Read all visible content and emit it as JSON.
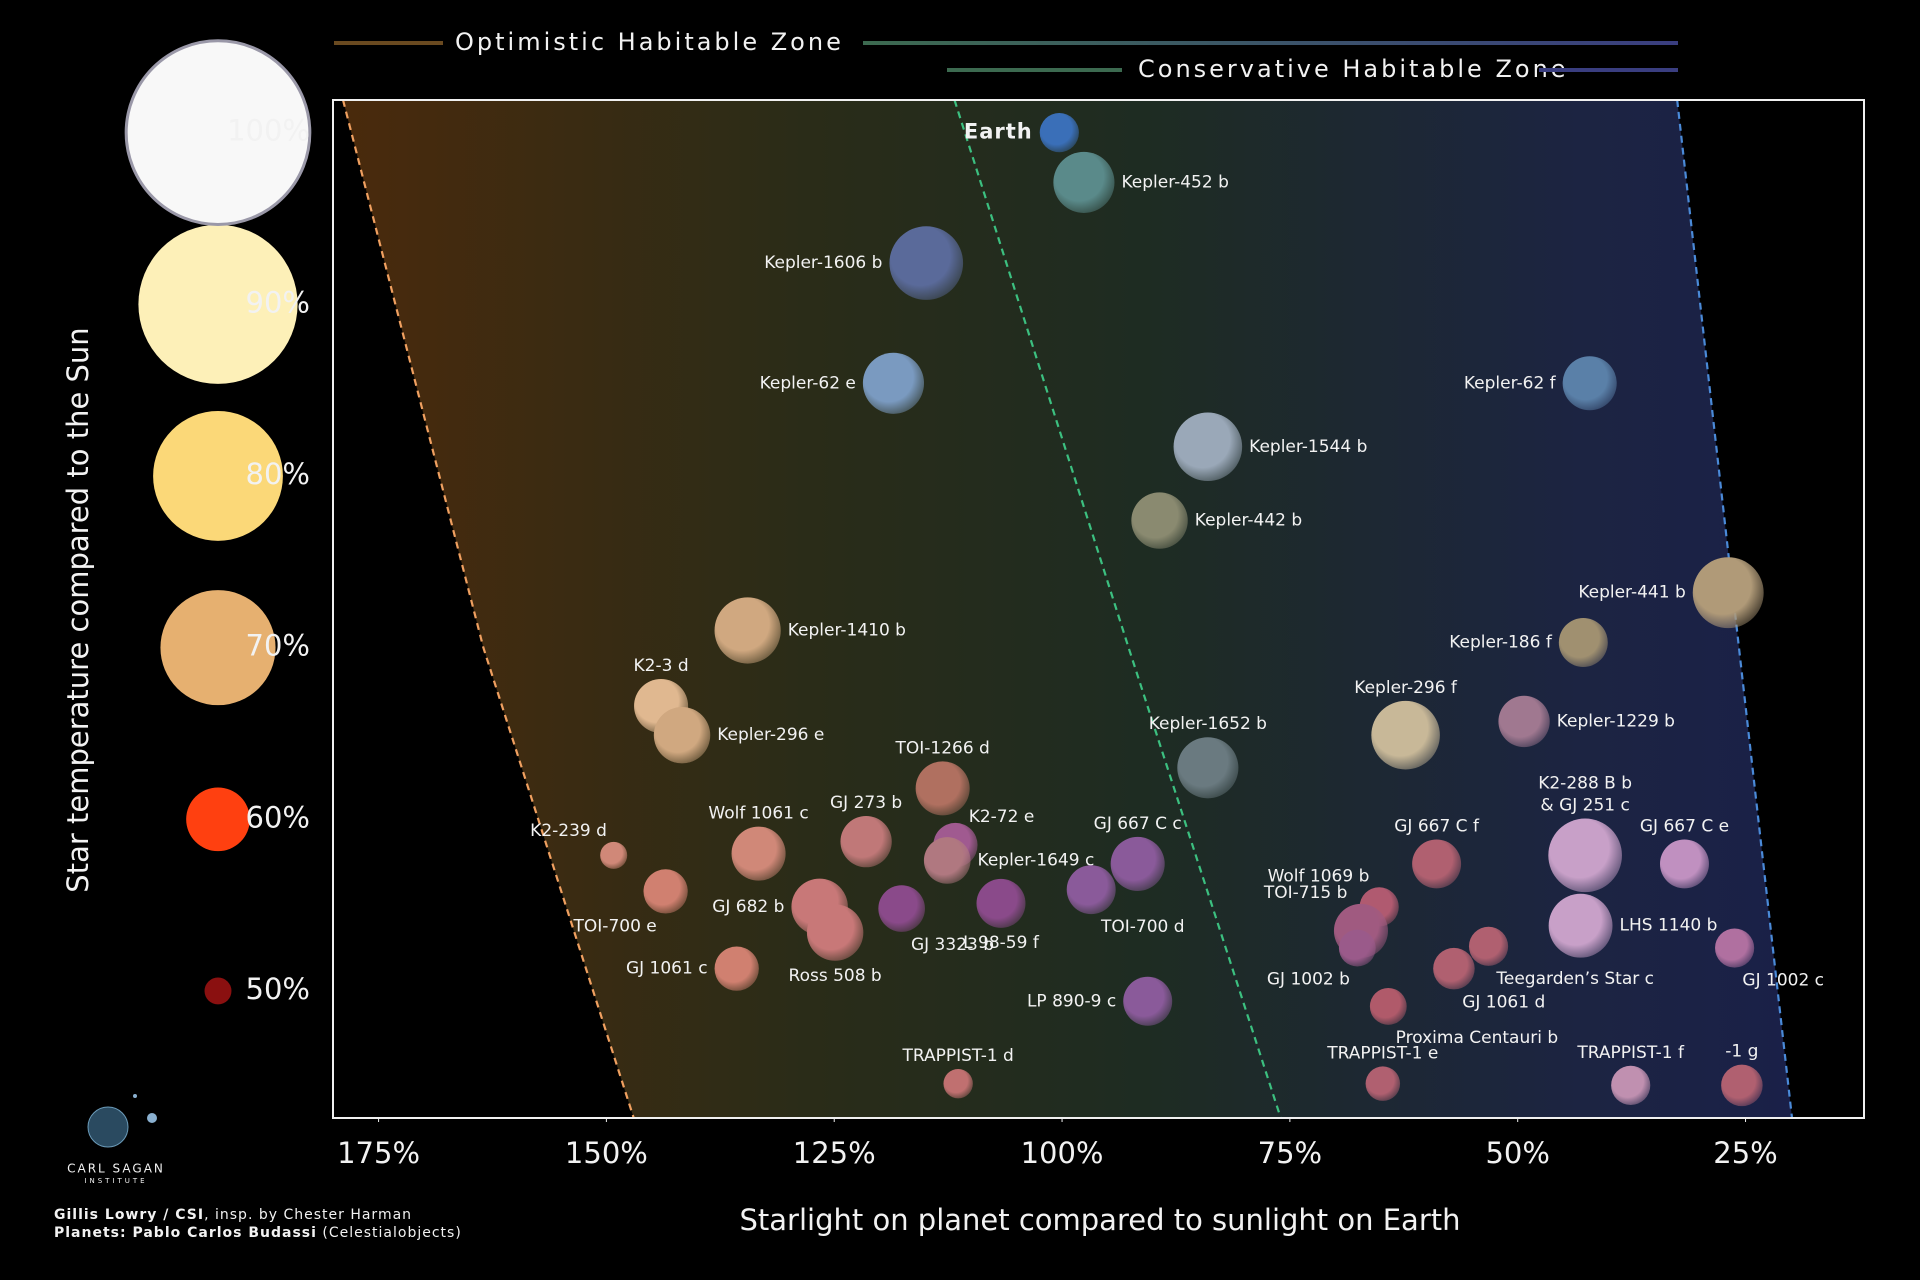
{
  "chart_data": {
    "type": "scatter",
    "x_label": "Starlight on planet compared to sunlight on Earth",
    "y_label": "Star temperature compared to the Sun",
    "xlim": [
      180,
      12
    ],
    "ylim": [
      42.6,
      101.9
    ],
    "xticks": [
      {
        "value": 175,
        "label": "175%"
      },
      {
        "value": 150,
        "label": "150%"
      },
      {
        "value": 125,
        "label": "125%"
      },
      {
        "value": 100,
        "label": "100%"
      },
      {
        "value": 75,
        "label": "75%"
      },
      {
        "value": 50,
        "label": "50%"
      },
      {
        "value": 25,
        "label": "25%"
      }
    ],
    "yticks": [
      {
        "value": 50,
        "label": "50%"
      },
      {
        "value": 60,
        "label": "60%"
      },
      {
        "value": 70,
        "label": "70%"
      },
      {
        "value": 80,
        "label": "80%"
      },
      {
        "value": 90,
        "label": "90%"
      },
      {
        "value": 100,
        "label": "100%"
      }
    ],
    "ytick_colors": [
      "#8a1010",
      "#ff4010",
      "#e6b070",
      "#fbd878",
      "#fdf0b8",
      "#f8f8f8"
    ],
    "zones": [
      {
        "name": "Optimistic Habitable Zone",
        "color": "#f0a060",
        "x": [
          178.9,
          163.5,
          147
        ],
        "y": [
          101.9,
          70,
          42.6
        ]
      },
      {
        "name": "Conservative Habitable Zone",
        "color": "#3cc080",
        "x": [
          111.8,
          92.7,
          76
        ],
        "y": [
          101.9,
          70,
          42.6
        ]
      },
      {
        "color": "#4a8ad8",
        "x": [
          32.5,
          19.9
        ],
        "y": [
          101.9,
          42.6
        ]
      }
    ],
    "series": [
      {
        "labels": [
          "Earth",
          "Kepler-452 b",
          "Kepler-1606 b",
          "Kepler-62 e",
          "Kepler-62 f",
          "Kepler-1544 b",
          "Kepler-442 b",
          "Kepler-441 b",
          "Kepler-186 f",
          "Kepler-1410 b",
          "K2-3 d",
          "Kepler-296 e",
          "Kepler-296 f",
          "Kepler-1229 b",
          "Kepler-1652 b",
          "TOI-1266 d",
          "K2-239 d",
          "Wolf 1061 c",
          "GJ 273 b",
          "K2-72 e",
          "Kepler-1649 c",
          "GJ 667 C c",
          "TOI-700 d",
          "TOI-700 e",
          "GJ 682 b",
          "Ross 508 b",
          "GJ 3323 b",
          "L 98-59 f",
          "GJ 1061 c",
          "LP 890-9 c",
          "TRAPPIST-1 d",
          "GJ 667 C f",
          "K2-288 B b\n& GJ 251 c",
          "GJ 667 C e",
          "Wolf 1069 b",
          "TOI-715 b",
          "GJ 1002 b",
          "LHS 1140 b",
          "GJ 1002 c",
          "Teegarden’s Star c",
          "GJ 1061 d",
          "Proxima Centauri b",
          "TRAPPIST-1 e",
          "TRAPPIST-1 f",
          "-1 g"
        ],
        "x": [
          100.3,
          97.6,
          114.9,
          118.5,
          42.1,
          84,
          89.3,
          26.9,
          42.8,
          134.5,
          144,
          141.7,
          62.3,
          49.3,
          84,
          113.1,
          149.2,
          133.3,
          121.5,
          111.7,
          112.6,
          91.7,
          96.8,
          143.5,
          126.6,
          124.9,
          117.6,
          106.7,
          135.7,
          90.6,
          111.4,
          58.9,
          42.6,
          31.7,
          65.2,
          67.2,
          67.6,
          43.1,
          26.2,
          53.2,
          57,
          64.2,
          64.8,
          37.6,
          25.4
        ],
        "values": [
          100,
          97.1,
          92.4,
          85.4,
          85.4,
          81.7,
          77.4,
          73.2,
          70.3,
          71,
          66.6,
          64.9,
          64.9,
          65.7,
          63,
          61.8,
          57.9,
          58,
          58.7,
          58.5,
          57.6,
          57.4,
          55.9,
          55.8,
          54.9,
          53.4,
          54.8,
          55.1,
          51.3,
          49.4,
          44.6,
          57.4,
          57.9,
          57.4,
          54.9,
          53.5,
          52.5,
          53.8,
          52.5,
          52.6,
          51.3,
          49.1,
          44.6,
          44.5,
          44.5
        ],
        "sizes": [
          1,
          1.56,
          1.88,
          1.56,
          1.38,
          1.75,
          1.44,
          1.81,
          1.25,
          1.69,
          1.38,
          1.44,
          1.75,
          1.31,
          1.56,
          1.38,
          0.69,
          1.38,
          1.31,
          1.13,
          1.19,
          1.38,
          1.25,
          1.13,
          1.44,
          1.44,
          1.19,
          1.25,
          1.13,
          1.25,
          0.75,
          1.25,
          1.88,
          1.25,
          1,
          1.38,
          0.94,
          1.63,
          1,
          1,
          1.06,
          0.94,
          0.88,
          1,
          1.06
        ],
        "colors": [
          "#3a6fb8",
          "#5a8a8a",
          "#5a6a9a",
          "#7a9ac0",
          "#5a80a8",
          "#9aa8b8",
          "#8a8a70",
          "#b09a78",
          "#a09070",
          "#d0a880",
          "#e0b890",
          "#d0a880",
          "#c8b898",
          "#a07890",
          "#6a7a80",
          "#b07060",
          "#d08878",
          "#d08878",
          "#c07878",
          "#a05a90",
          "#b07880",
          "#8a5a9a",
          "#8a5a9a",
          "#d08070",
          "#c87878",
          "#c87878",
          "#8a4a8a",
          "#8a4a8a",
          "#d08070",
          "#8a5a9a",
          "#c07070",
          "#b06070",
          "#c8a0c8",
          "#c090c0",
          "#b05a70",
          "#a05a80",
          "#9a5a8a",
          "#c8a0c8",
          "#b070a0",
          "#b06070",
          "#b06070",
          "#b05a6a",
          "#b06070",
          "#c090b0",
          "#b06070"
        ]
      }
    ]
  },
  "logo": {
    "name": "CARL SAGAN",
    "subtitle": "INSTITUTE"
  },
  "credits": [
    {
      "bold": "Gillis Lowry / CSI",
      "text": ", insp. by Chester Harman"
    },
    {
      "bold": "Planets: Pablo Carlos Budassi",
      "text": " (Celestialobjects)"
    }
  ]
}
